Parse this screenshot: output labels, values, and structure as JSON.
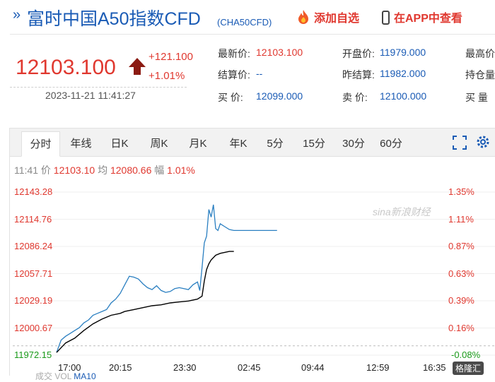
{
  "header": {
    "title": "富时中国A50指数CFD",
    "code": "(CHA50CFD)",
    "add_fav": "添加自选",
    "app_view": "在APP中查看"
  },
  "price": {
    "last": "12103.100",
    "change": "+121.100",
    "change_pct": "+1.01%",
    "datetime": "2023-11-21 11:41:27",
    "up_color": "#e0382f"
  },
  "quotes": [
    {
      "label": "最新价:",
      "value": "12103.100",
      "color": "red"
    },
    {
      "label": "开盘价:",
      "value": "11979.000",
      "color": "blue"
    },
    {
      "label": "最高价",
      "value": "",
      "color": "red"
    },
    {
      "label": "结算价:",
      "value": "--",
      "color": "blue"
    },
    {
      "label": "昨结算:",
      "value": "11982.000",
      "color": "blue"
    },
    {
      "label": "持仓量",
      "value": "",
      "color": "blue"
    },
    {
      "label": "买  价:",
      "value": "12099.000",
      "color": "blue"
    },
    {
      "label": "卖  价:",
      "value": "12100.000",
      "color": "blue"
    },
    {
      "label": "买  量",
      "value": "",
      "color": "blue"
    }
  ],
  "tabs": [
    "分时",
    "年线",
    "日K",
    "周K",
    "月K",
    "年K",
    "5分",
    "15分",
    "30分",
    "60分"
  ],
  "active_tab": 0,
  "info": {
    "time": "11:41",
    "price_label": "价",
    "price": "12103.10",
    "avg_label": "均",
    "avg": "12080.66",
    "amp_label": "幅",
    "amp": "1.01%"
  },
  "chart_data": {
    "type": "line",
    "y_left_ticks": [
      "12143.28",
      "12114.76",
      "12086.24",
      "12057.71",
      "12029.19",
      "12000.67",
      "11972.15"
    ],
    "y_right_ticks": [
      "1.35%",
      "1.11%",
      "0.87%",
      "0.63%",
      "0.39%",
      "0.16%",
      "-0.08%"
    ],
    "x_ticks": [
      "17:00",
      "20:15",
      "23:30",
      "02:45",
      "09:44",
      "12:59",
      "16:35"
    ],
    "ylim": [
      11972.15,
      12143.28
    ],
    "prev_settle": 11982.0,
    "series": [
      {
        "name": "价",
        "color": "#2a7fc1",
        "x": [
          0,
          2,
          4,
          6,
          8,
          10,
          12,
          14,
          16,
          18,
          20,
          22,
          24,
          26,
          28,
          30,
          32,
          34,
          36,
          38,
          40,
          42,
          44,
          46,
          48,
          50,
          52,
          54,
          56,
          58,
          60,
          62,
          63,
          64,
          65,
          66,
          67,
          68,
          69,
          70,
          71,
          72,
          74,
          76,
          78,
          80,
          82,
          84,
          86,
          88,
          90,
          92,
          94,
          96,
          97
        ],
        "values": [
          11975,
          11988,
          11992,
          11995,
          11998,
          12001,
          12006,
          12009,
          12014,
          12016,
          12018,
          12020,
          12027,
          12031,
          12037,
          12046,
          12055,
          12054,
          12052,
          12047,
          12043,
          12041,
          12045,
          12040,
          12038,
          12039,
          12042,
          12043,
          12042,
          12041,
          12046,
          12049,
          12040,
          12064,
          12090,
          12097,
          12125,
          12117,
          12130,
          12105,
          12103,
          12110,
          12107,
          12104,
          12103,
          12103,
          12103,
          12103,
          12103,
          12103,
          12103,
          12103,
          12103,
          12103,
          12103
        ]
      },
      {
        "name": "均",
        "color": "#000000",
        "x": [
          0,
          4,
          8,
          12,
          16,
          20,
          24,
          28,
          30,
          34,
          38,
          42,
          46,
          50,
          54,
          58,
          62,
          64,
          65,
          66,
          67,
          68,
          70,
          72,
          74,
          76,
          78
        ],
        "values": [
          11975,
          11985,
          11990,
          11998,
          12005,
          12010,
          12014,
          12016,
          12018,
          12020,
          12022,
          12024,
          12025,
          12027,
          12028,
          12029,
          12031,
          12034,
          12050,
          12062,
          12068,
          12072,
          12077,
          12079,
          12080,
          12081,
          12081
        ]
      }
    ]
  },
  "watermark": "sina新浪财经",
  "brand": "格隆汇",
  "bottom": {
    "a": "成交",
    "b": "VOL",
    "c": "MA10"
  }
}
